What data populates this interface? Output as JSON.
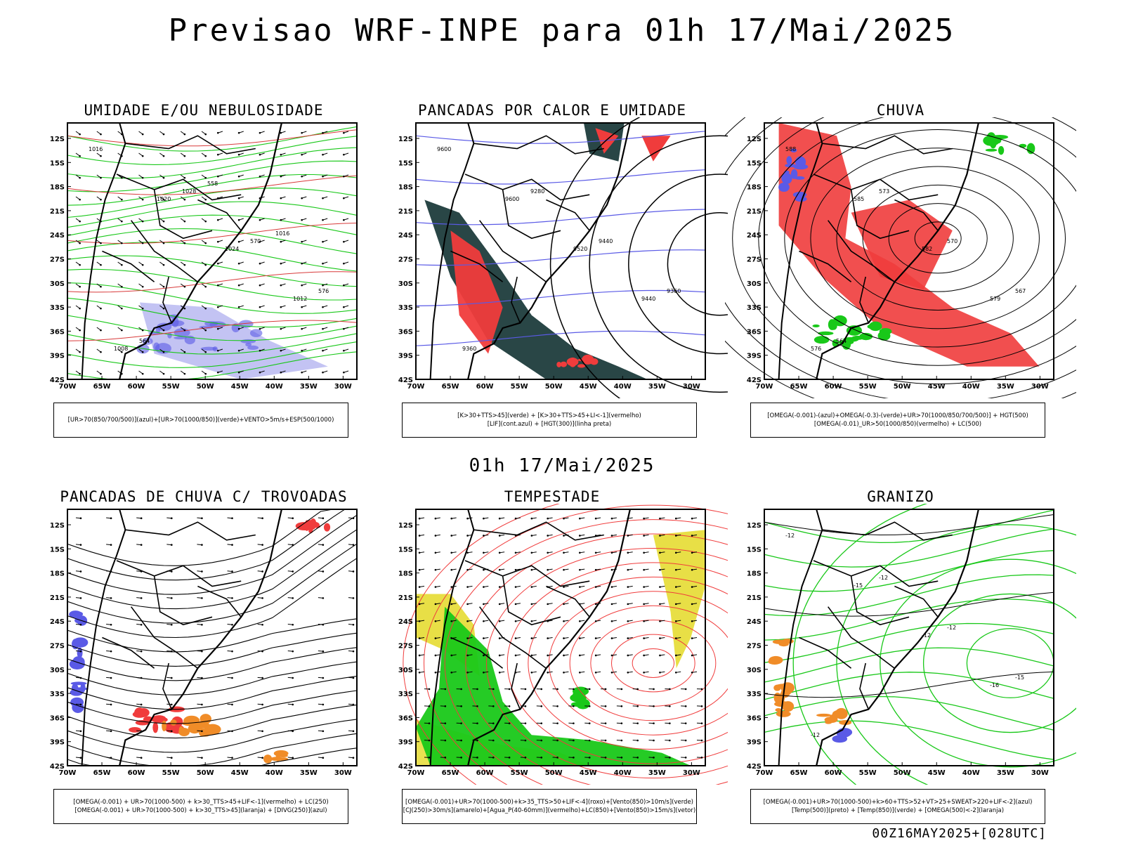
{
  "title": "Previsao WRF-INPE  para 01h 17/Mai/2025",
  "mid_title": "01h 17/Mai/2025",
  "footer": "00Z16MAY2025+[028UTC]",
  "axes": {
    "lat_labels": [
      "12S",
      "15S",
      "18S",
      "21S",
      "24S",
      "27S",
      "30S",
      "33S",
      "36S",
      "39S",
      "42S"
    ],
    "lon_labels": [
      "70W",
      "65W",
      "60W",
      "55W",
      "50W",
      "45W",
      "40W",
      "35W",
      "30W"
    ]
  },
  "colors": {
    "blue": "#5a5ae6",
    "green": "#19c819",
    "red": "#f03c3c",
    "orange": "#f08c28",
    "dark_teal": "#1e3c3c",
    "yellow": "#e6dc32",
    "lavender": "#b4b4f0"
  },
  "panels": [
    {
      "title": "UMIDADE E/OU NEBULOSIDADE",
      "legend": [
        "[UR>70(850/700/500)](azul)+[UR>70(1000/850)](verde)+VENTO>5m/s+ESP(500/1000)"
      ],
      "contour_labels": [
        "1016",
        "1020",
        "1024",
        "1012",
        "1008",
        "1028",
        "570",
        "576",
        "564",
        "558",
        "1016"
      ]
    },
    {
      "title": "PANCADAS POR CALOR E UMIDADE",
      "legend": [
        "[K>30+TTS>45](verde) + [K>30+TTS>45+LI<-1](vermelho)",
        "[LIF](cont.azul) + [HGT(300)](linha preta)"
      ],
      "contour_labels": [
        "9600",
        "9600",
        "9520",
        "9440",
        "9360",
        "9280",
        "9440",
        "9360"
      ]
    },
    {
      "title": "CHUVA",
      "legend": [
        "[OMEGA(-0.001)-(azul)+OMEGA(-0.3)-(verde)+UR>70(1000/850/700/500)] + HGT(500)",
        "[OMEGA(-0.01)_UR>50(1000/850)(vermelho) + LC(500)"
      ],
      "contour_labels": [
        "588",
        "585",
        "582",
        "579",
        "576",
        "573",
        "570",
        "567",
        "564"
      ]
    },
    {
      "title": "PANCADAS DE CHUVA C/ TROVOADAS",
      "legend": [
        "[OMEGA(-0.001) + UR>70(1000-500) + k>30_TTS>45+LIF<-1](vermelho) + LC(250)",
        "[OMEGA(-0.001) + UR>70(1000-500) + k>30_TTS>45](laranja) + [DIVG(250)](azul)"
      ],
      "contour_labels": []
    },
    {
      "title": "TEMPESTADE",
      "legend": [
        "[OMEGA(-0.001)+UR>70(1000-500)+k>35_TTS>50+LIF<-4](roxo)+[Vento(850)>10m/s](verde)",
        "[CJ(250)>30m/s](amarelo)+[Agua_P(40-60mm)](vermelho)+LC(850)+[Vento(850)>15m/s](vetor)"
      ],
      "contour_labels": []
    },
    {
      "title": "GRANIZO",
      "legend": [
        "[OMEGA(-0.001)+UR>70(1000-500)+k>60+TTS>52+VT>25+SWEAT>220+LIF<-2](azul)",
        "[Temp(500)](preto) + [Temp(850)](verde) + [OMEGA(500)<-2](laranja)"
      ],
      "contour_labels": [
        "-12",
        "-15",
        "-12",
        "-16",
        "-12",
        "-12",
        "-12",
        "-15"
      ]
    }
  ]
}
